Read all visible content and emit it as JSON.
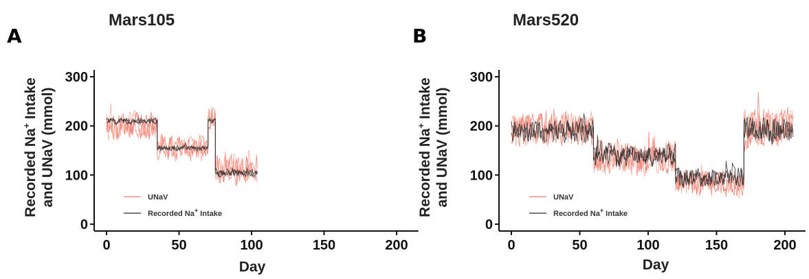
{
  "panels": {
    "a": {
      "letter": "A",
      "title": "Mars105"
    },
    "b": {
      "letter": "B",
      "title": "Mars520"
    }
  },
  "colors": {
    "unav": "#f07a6a",
    "unav_light": "#f4a596",
    "intake": "#2a2a2a",
    "axis": "#111111"
  },
  "chart_data": [
    {
      "type": "line",
      "title": "Mars105",
      "xlabel": "Day",
      "ylabel": "Recorded Na+ Intake and UNaV (mmol)",
      "ylabel_line1": "Recorded Na",
      "ylabel_sup": "+",
      "ylabel_line1_rest": " Intake",
      "ylabel_line2": "and UNaV (mmol)",
      "xlim": [
        -5,
        215
      ],
      "ylim": [
        0,
        350
      ],
      "xticks": [
        0,
        50,
        100,
        150,
        200
      ],
      "yticks": [
        0,
        100,
        200,
        300
      ],
      "grid": false,
      "legend_position": "bottom-left",
      "legend": {
        "unav": "UNaV",
        "intake_pre": "Recorded Na",
        "intake_sup": "+",
        "intake_post": " Intake"
      },
      "series": [
        {
          "name": "UNaV",
          "segments": [
            {
              "x_start": 0,
              "x_end": 35,
              "level": 200,
              "noise": 38,
              "seed": 11
            },
            {
              "x_start": 35,
              "x_end": 70,
              "level": 155,
              "noise": 32,
              "seed": 12
            },
            {
              "x_start": 70,
              "x_end": 75,
              "level": 215,
              "noise": 35,
              "seed": 13
            },
            {
              "x_start": 75,
              "x_end": 104,
              "level": 110,
              "noise": 38,
              "seed": 14
            }
          ]
        },
        {
          "name": "Recorded Na+ Intake",
          "segments": [
            {
              "x_start": 0,
              "x_end": 35,
              "level": 210,
              "noise": 8,
              "seed": 21
            },
            {
              "x_start": 35,
              "x_end": 70,
              "level": 155,
              "noise": 7,
              "seed": 22
            },
            {
              "x_start": 70,
              "x_end": 75,
              "level": 210,
              "noise": 6,
              "seed": 23
            },
            {
              "x_start": 75,
              "x_end": 104,
              "level": 105,
              "noise": 12,
              "seed": 24
            }
          ]
        }
      ]
    },
    {
      "type": "line",
      "title": "Mars520",
      "xlabel": "Day",
      "ylabel": "Recorded Na+ Intake and UNaV (mmol)",
      "ylabel_line1": "Recorded Na",
      "ylabel_sup": "+",
      "ylabel_line1_rest": " Intake",
      "ylabel_line2": "and UNaV (mmol)",
      "xlim": [
        -5,
        215
      ],
      "ylim": [
        0,
        350
      ],
      "xticks": [
        0,
        50,
        100,
        150,
        200
      ],
      "yticks": [
        0,
        100,
        200,
        300
      ],
      "grid": false,
      "legend_position": "bottom-left",
      "legend": {
        "unav": "UNaV",
        "intake_pre": "Recorded Na",
        "intake_sup": "+",
        "intake_post": " Intake"
      },
      "series": [
        {
          "name": "UNaV",
          "segments": [
            {
              "x_start": 0,
              "x_end": 60,
              "level": 195,
              "noise": 45,
              "seed": 31
            },
            {
              "x_start": 60,
              "x_end": 120,
              "level": 135,
              "noise": 45,
              "seed": 32
            },
            {
              "x_start": 120,
              "x_end": 170,
              "level": 85,
              "noise": 35,
              "seed": 33
            },
            {
              "x_start": 170,
              "x_end": 206,
              "level": 195,
              "noise": 55,
              "seed": 34
            }
          ]
        },
        {
          "name": "Recorded Na+ Intake",
          "segments": [
            {
              "x_start": 0,
              "x_end": 60,
              "level": 190,
              "noise": 30,
              "seed": 41
            },
            {
              "x_start": 60,
              "x_end": 120,
              "level": 140,
              "noise": 30,
              "seed": 42
            },
            {
              "x_start": 120,
              "x_end": 170,
              "level": 95,
              "noise": 25,
              "seed": 43
            },
            {
              "x_start": 170,
              "x_end": 206,
              "level": 190,
              "noise": 35,
              "seed": 44
            }
          ]
        }
      ]
    }
  ]
}
